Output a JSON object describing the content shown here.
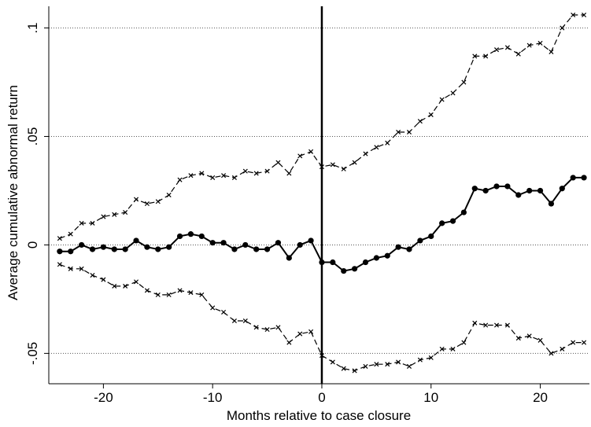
{
  "chart_data": {
    "type": "line",
    "title": "",
    "xlabel": "Months relative to case closure",
    "ylabel": "Average cumulative abnormal return",
    "xlim": [
      -25,
      24.5
    ],
    "ylim": [
      -0.064,
      0.11
    ],
    "x_ticks": [
      -20,
      -10,
      0,
      10,
      20
    ],
    "x_tick_labels": [
      "-20",
      "-10",
      "0",
      "10",
      "20"
    ],
    "y_ticks": [
      -0.05,
      0,
      0.05,
      0.1
    ],
    "y_tick_labels": [
      "-.05",
      "0",
      ".05",
      ".1"
    ],
    "grid": "horizontal dotted at y ticks",
    "vertical_reference_line": 0,
    "x": [
      -24,
      -23,
      -22,
      -21,
      -20,
      -19,
      -18,
      -17,
      -16,
      -15,
      -14,
      -13,
      -12,
      -11,
      -10,
      -9,
      -8,
      -7,
      -6,
      -5,
      -4,
      -3,
      -2,
      -1,
      0,
      1,
      2,
      3,
      4,
      5,
      6,
      7,
      8,
      9,
      10,
      11,
      12,
      13,
      14,
      15,
      16,
      17,
      18,
      19,
      20,
      21,
      22,
      23,
      24
    ],
    "series": [
      {
        "style": "solid-dot",
        "color": "#000000",
        "values": [
          -0.003,
          -0.003,
          0.0,
          -0.002,
          -0.001,
          -0.002,
          -0.002,
          0.002,
          -0.001,
          -0.002,
          -0.001,
          0.004,
          0.005,
          0.004,
          0.001,
          0.001,
          -0.002,
          0.0,
          -0.002,
          -0.002,
          0.001,
          -0.006,
          0.0,
          0.002,
          -0.008,
          -0.008,
          -0.012,
          -0.011,
          -0.008,
          -0.006,
          -0.005,
          -0.001,
          -0.002,
          0.002,
          0.004,
          0.01,
          0.011,
          0.015,
          0.026,
          0.025,
          0.027,
          0.027,
          0.023,
          0.025,
          0.025,
          0.019,
          0.026,
          0.031,
          0.031
        ]
      },
      {
        "style": "dashed-x",
        "color": "#000000",
        "values": [
          0.003,
          0.005,
          0.01,
          0.01,
          0.013,
          0.014,
          0.015,
          0.021,
          0.019,
          0.02,
          0.023,
          0.03,
          0.032,
          0.033,
          0.031,
          0.032,
          0.031,
          0.034,
          0.033,
          0.034,
          0.038,
          0.033,
          0.041,
          0.043,
          0.036,
          0.037,
          0.035,
          0.038,
          0.042,
          0.045,
          0.047,
          0.052,
          0.052,
          0.057,
          0.06,
          0.067,
          0.07,
          0.075,
          0.087,
          0.087,
          0.09,
          0.091,
          0.088,
          0.092,
          0.093,
          0.089,
          0.1,
          0.106,
          0.106
        ]
      },
      {
        "style": "dashed-x",
        "color": "#000000",
        "values": [
          -0.009,
          -0.011,
          -0.011,
          -0.014,
          -0.016,
          -0.019,
          -0.019,
          -0.017,
          -0.021,
          -0.023,
          -0.023,
          -0.021,
          -0.022,
          -0.023,
          -0.029,
          -0.031,
          -0.035,
          -0.035,
          -0.038,
          -0.039,
          -0.038,
          -0.045,
          -0.041,
          -0.04,
          -0.051,
          -0.054,
          -0.057,
          -0.058,
          -0.056,
          -0.055,
          -0.055,
          -0.054,
          -0.056,
          -0.053,
          -0.052,
          -0.048,
          -0.048,
          -0.045,
          -0.036,
          -0.037,
          -0.037,
          -0.037,
          -0.043,
          -0.042,
          -0.044,
          -0.05,
          -0.048,
          -0.045,
          -0.045
        ]
      }
    ]
  }
}
